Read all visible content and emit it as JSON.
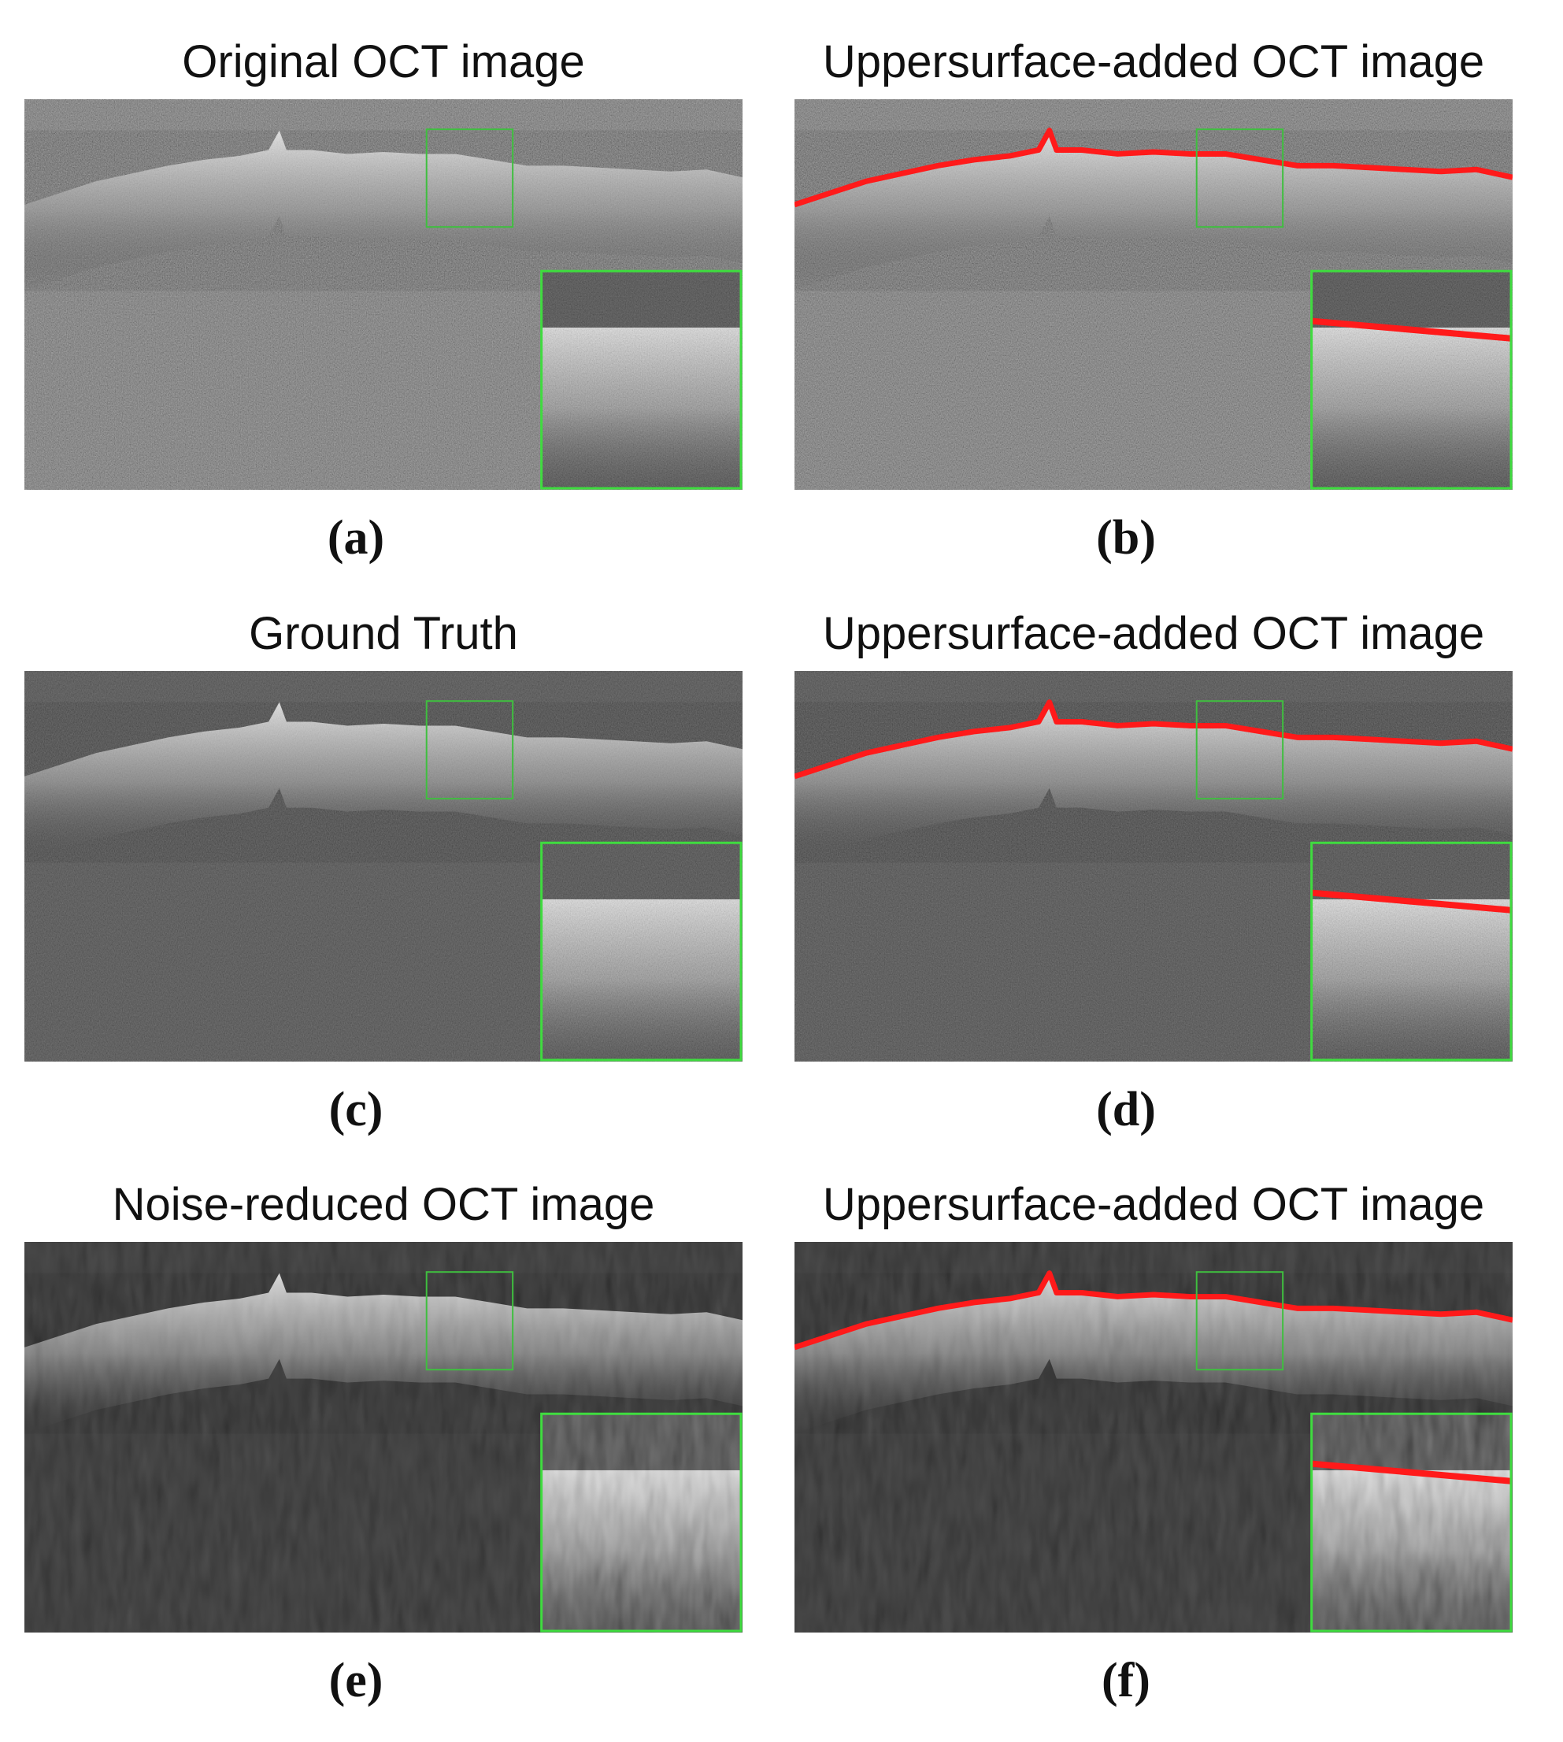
{
  "panels": [
    {
      "title": "Original OCT image",
      "label": "(a)"
    },
    {
      "title": "Uppersurface-added OCT image",
      "label": "(b)"
    },
    {
      "title": "Ground Truth",
      "label": "(c)"
    },
    {
      "title": "Uppersurface-added OCT image",
      "label": "(d)"
    },
    {
      "title": "Noise-reduced OCT image",
      "label": "(e)"
    },
    {
      "title": "Uppersurface-added OCT image",
      "label": "(f)"
    }
  ]
}
